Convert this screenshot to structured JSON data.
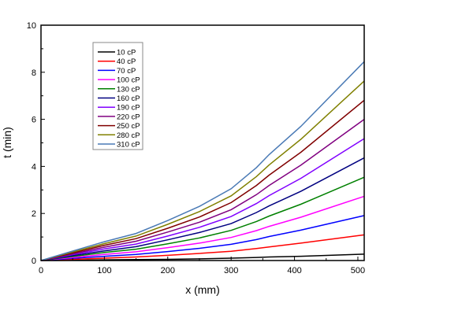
{
  "chart_data": {
    "type": "line",
    "title": "",
    "xlabel": "x (mm)",
    "ylabel": "t (min)",
    "xlim": [
      0,
      510
    ],
    "ylim": [
      0,
      10
    ],
    "xticks": [
      0,
      100,
      200,
      300,
      400,
      500
    ],
    "yticks": [
      0,
      2,
      4,
      6,
      8,
      10
    ],
    "grid": false,
    "legend_position": "top-left",
    "x": [
      0,
      50,
      100,
      150,
      200,
      250,
      300,
      340,
      360,
      410,
      510
    ],
    "series": [
      {
        "name": "10 cP",
        "color": "#000000",
        "values": [
          0,
          0.01,
          0.03,
          0.04,
          0.05,
          0.07,
          0.1,
          0.13,
          0.15,
          0.18,
          0.27
        ]
      },
      {
        "name": "40 cP",
        "color": "#ff0000",
        "values": [
          0,
          0.05,
          0.1,
          0.15,
          0.22,
          0.3,
          0.39,
          0.51,
          0.58,
          0.74,
          1.09
        ]
      },
      {
        "name": "70 cP",
        "color": "#0000ff",
        "values": [
          0,
          0.09,
          0.18,
          0.26,
          0.38,
          0.52,
          0.69,
          0.89,
          1.02,
          1.29,
          1.91
        ]
      },
      {
        "name": "100 cP",
        "color": "#ff00ff",
        "values": [
          0,
          0.13,
          0.26,
          0.37,
          0.55,
          0.74,
          0.98,
          1.27,
          1.45,
          1.84,
          2.73
        ]
      },
      {
        "name": "130 cP",
        "color": "#008000",
        "values": [
          0,
          0.17,
          0.34,
          0.48,
          0.71,
          0.96,
          1.28,
          1.66,
          1.89,
          2.39,
          3.54
        ]
      },
      {
        "name": "160 cP",
        "color": "#000080",
        "values": [
          0,
          0.21,
          0.41,
          0.59,
          0.88,
          1.19,
          1.57,
          2.04,
          2.32,
          2.94,
          4.36
        ]
      },
      {
        "name": "190 cP",
        "color": "#8000ff",
        "values": [
          0,
          0.25,
          0.49,
          0.7,
          1.04,
          1.41,
          1.87,
          2.42,
          2.76,
          3.49,
          5.18
        ]
      },
      {
        "name": "220 cP",
        "color": "#800080",
        "values": [
          0,
          0.28,
          0.57,
          0.82,
          1.21,
          1.63,
          2.16,
          2.8,
          3.19,
          4.05,
          6.0
        ]
      },
      {
        "name": "250 cP",
        "color": "#800000",
        "values": [
          0,
          0.32,
          0.65,
          0.93,
          1.37,
          1.85,
          2.46,
          3.19,
          3.63,
          4.6,
          6.81
        ]
      },
      {
        "name": "280 cP",
        "color": "#808000",
        "values": [
          0,
          0.36,
          0.72,
          1.04,
          1.54,
          2.08,
          2.75,
          3.57,
          4.06,
          5.15,
          7.63
        ]
      },
      {
        "name": "310 cP",
        "color": "#4a7ab5",
        "values": [
          0,
          0.4,
          0.8,
          1.15,
          1.7,
          2.3,
          3.05,
          3.95,
          4.5,
          5.7,
          8.45
        ]
      }
    ]
  }
}
